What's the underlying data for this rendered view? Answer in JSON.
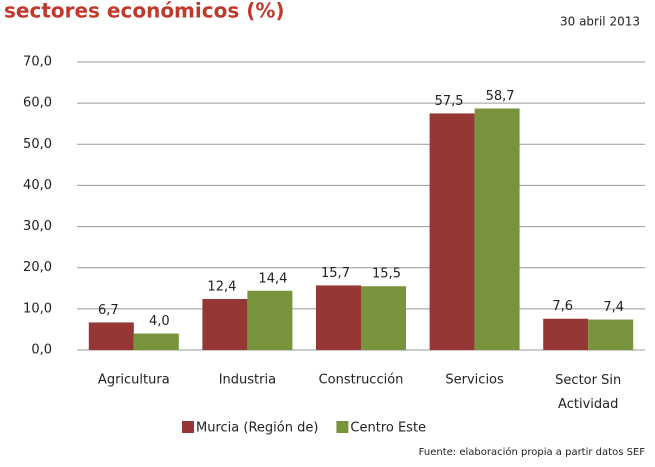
{
  "chart_data": {
    "type": "bar",
    "title": "sectores económicos (%)",
    "date": "30  abril 2013",
    "source": "Fuente: elaboración propia a partir  datos SEF",
    "categories": [
      "Agricultura",
      "Industria",
      "Construcción",
      "Servicios",
      "Sector Sin\nActividad"
    ],
    "series": [
      {
        "name": "Murcia (Región de)",
        "color": "#953735",
        "values": [
          6.7,
          12.4,
          15.7,
          57.5,
          7.6
        ],
        "value_labels": [
          "6,7",
          "12,4",
          "15,7",
          "57,5",
          "7,6"
        ]
      },
      {
        "name": "Centro Este",
        "color": "#77933c",
        "values": [
          4.0,
          14.4,
          15.5,
          58.7,
          7.4
        ],
        "value_labels": [
          "4,0",
          "14,4",
          "15,5",
          "58,7",
          "7,4"
        ]
      }
    ],
    "ylim": [
      0,
      70
    ],
    "yticks": [
      {
        "value": 0,
        "label": "0,0"
      },
      {
        "value": 10,
        "label": "10,0"
      },
      {
        "value": 20,
        "label": "20,0"
      },
      {
        "value": 30,
        "label": "30,0"
      },
      {
        "value": 40,
        "label": "40,0"
      },
      {
        "value": 50,
        "label": "50,0"
      },
      {
        "value": 60,
        "label": "60,0"
      },
      {
        "value": 70,
        "label": "70,0"
      }
    ],
    "grid": true,
    "legend": "bottom"
  }
}
